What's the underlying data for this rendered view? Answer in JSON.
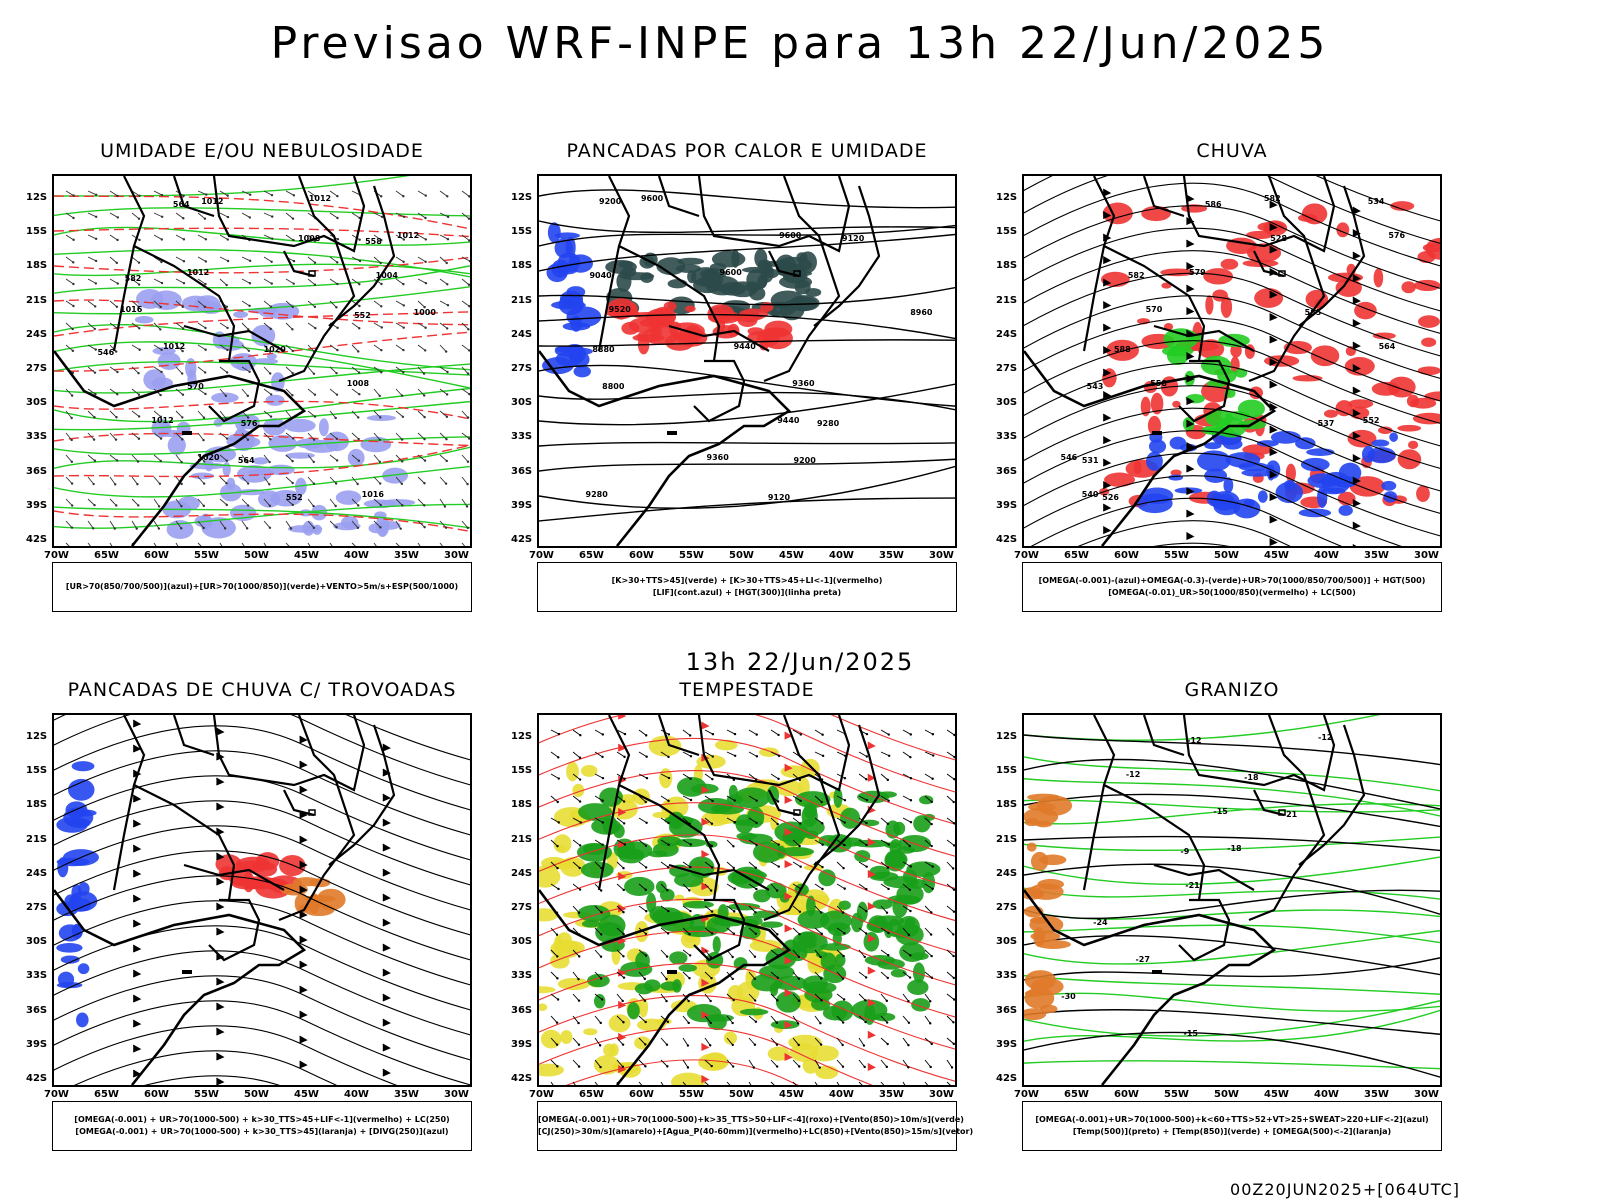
{
  "header": {
    "title": "Previsao WRF-INPE  para 13h 22/Jun/2025"
  },
  "middle_time": "13h 22/Jun/2025",
  "footer": "00Z20JUN2025+[064UTC]",
  "axes": {
    "lat_labels": [
      "12S",
      "15S",
      "18S",
      "21S",
      "24S",
      "27S",
      "30S",
      "33S",
      "36S",
      "39S",
      "42S"
    ],
    "lon_labels": [
      "70W",
      "65W",
      "60W",
      "55W",
      "50W",
      "45W",
      "40W",
      "35W",
      "30W"
    ]
  },
  "colors": {
    "green": "#22cc22",
    "blue": "#2244ee",
    "red": "#ee3333",
    "yellow": "#e8dd33",
    "darkgreen": "#1a9e1a",
    "orange": "#e07a2a",
    "lavender": "#9aa0f0",
    "teal": "#2e4a4a"
  },
  "panels": [
    {
      "title": "UMIDADE E/OU NEBULOSIDADE",
      "legend": [
        "[UR>70(850/700/500)](azul)+[UR>70(1000/850)](verde)+VENTO>5m/s+ESP(500/1000)"
      ],
      "contour_labels": [
        "1012",
        "1012",
        "1012",
        "1016",
        "1012",
        "1008",
        "1012",
        "1020",
        "1016",
        "1012",
        "1008",
        "1004",
        "1000",
        "1020",
        "570",
        "576",
        "564",
        "552",
        "564",
        "558",
        "582",
        "552",
        "546"
      ]
    },
    {
      "title": "PANCADAS POR CALOR E UMIDADE",
      "legend": [
        "[K>30+TTS>45](verde) + [K>30+TTS>45+LI<-1](vermelho)",
        "[LIF](cont.azul) + [HGT(300)](linha preta)"
      ],
      "contour_labels": [
        "9600",
        "9600",
        "9600",
        "9520",
        "9440",
        "9360",
        "9440",
        "9360",
        "9280",
        "9200",
        "9120",
        "9040",
        "8960",
        "8880",
        "8800",
        "9280",
        "9200",
        "9120"
      ]
    },
    {
      "title": "CHUVA",
      "legend": [
        "[OMEGA(-0.001)-(azul)+OMEGA(-0.3)-(verde)+UR>70(1000/850/700/500)] + HGT(500)",
        "[OMEGA(-0.01)_UR>50(1000/850)(vermelho) + LC(500)"
      ],
      "contour_labels": [
        "582",
        "576",
        "579",
        "570",
        "564",
        "558",
        "552",
        "546",
        "540",
        "534",
        "528",
        "582",
        "585",
        "588",
        "543",
        "537",
        "531",
        "526",
        "586"
      ]
    },
    {
      "title": "PANCADAS DE CHUVA C/ TROVOADAS",
      "legend": [
        "[OMEGA(-0.001) + UR>70(1000-500) + k>30_TTS>45+LIF<-1](vermelho) + LC(250)",
        "[OMEGA(-0.001) + UR>70(1000-500) + k>30_TTS>45](laranja) + [DIVG(250)](azul)"
      ],
      "contour_labels": []
    },
    {
      "title": "TEMPESTADE",
      "legend": [
        "[OMEGA(-0.001)+UR>70(1000-500)+k>35_TTS>50+LIF<-4](roxo)+[Vento(850)>10m/s](verde)",
        "[CJ(250)>30m/s](amarelo)+[Agua_P(40-60mm)](vermelho)+LC(850)+[Vento(850)>15m/s](vetor)"
      ],
      "contour_labels": []
    },
    {
      "title": "GRANIZO",
      "legend": [
        "[OMEGA(-0.001)+UR>70(1000-500)+k<60+TTS>52+VT>25+SWEAT>220+LIF<-2](azul)",
        "[Temp(500)](preto) + [Temp(850)](verde) + [OMEGA(500)<-2](laranja)"
      ],
      "contour_labels": [
        "-12",
        "-12",
        "-15",
        "-18",
        "-21",
        "-24",
        "-27",
        "-30",
        "-15",
        "-12",
        "-18",
        "-21",
        "-9"
      ]
    }
  ]
}
